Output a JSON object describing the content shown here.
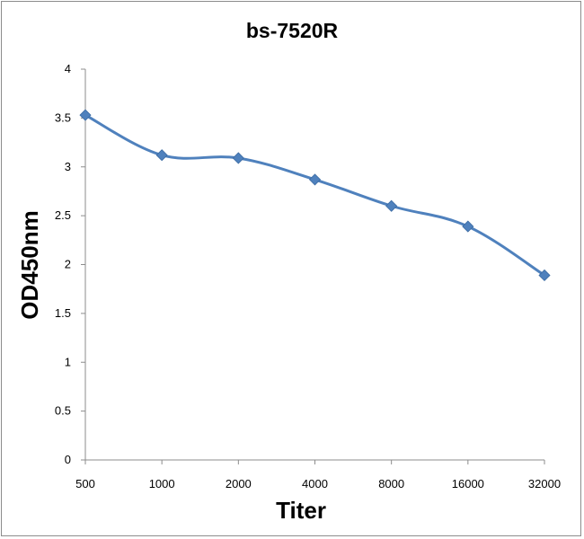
{
  "chart_data": {
    "type": "line",
    "title": "bs-7520R",
    "xlabel": "Titer",
    "ylabel": "OD450nm",
    "categories": [
      "500",
      "1000",
      "2000",
      "4000",
      "8000",
      "16000",
      "32000"
    ],
    "series": [
      {
        "values": [
          3.53,
          3.12,
          3.09,
          2.87,
          2.6,
          2.39,
          1.89
        ]
      }
    ],
    "ylim": [
      0,
      4
    ],
    "yticks": [
      "0",
      "0.5",
      "1",
      "1.5",
      "2",
      "2.5",
      "3",
      "3.5",
      "4"
    ],
    "grid": false,
    "legend": "none",
    "line_color": "#4f81bd",
    "marker": "diamond"
  }
}
